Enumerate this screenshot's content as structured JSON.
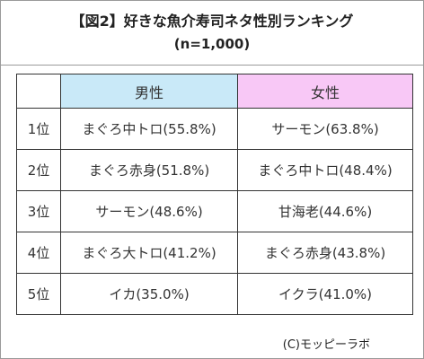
{
  "title": "【図2】好きな魚介寿司ネタ性別ランキング",
  "subtitle": "(n=1,000)",
  "table": {
    "headers": [
      "",
      "男性",
      "女性"
    ],
    "rows": [
      {
        "rank": "1位",
        "male": "まぐろ中トロ(55.8%)",
        "female": "サーモン(63.8%)"
      },
      {
        "rank": "2位",
        "male": "まぐろ赤身(51.8%)",
        "female": "まぐろ中トロ(48.4%)"
      },
      {
        "rank": "3位",
        "male": "サーモン(48.6%)",
        "female": "甘海老(44.6%)"
      },
      {
        "rank": "4位",
        "male": "まぐろ大トロ(41.2%)",
        "female": "まぐろ赤身(43.8%)"
      },
      {
        "rank": "5位",
        "male": "イカ(35.0%)",
        "female": "イクラ(41.0%)"
      }
    ]
  },
  "credit": "(C)モッピーラボ",
  "colors": {
    "male_header_bg": "#c9e9f8",
    "female_header_bg": "#f8c8f6"
  }
}
